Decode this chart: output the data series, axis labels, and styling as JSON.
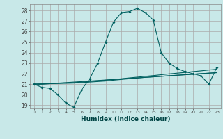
{
  "title": "",
  "xlabel": "Humidex (Indice chaleur)",
  "bg_color": "#c8e8e8",
  "grid_color": "#aaaaaa",
  "line_color": "#006060",
  "xlim": [
    -0.5,
    23.5
  ],
  "ylim": [
    18.7,
    28.6
  ],
  "yticks": [
    19,
    20,
    21,
    22,
    23,
    24,
    25,
    26,
    27,
    28
  ],
  "xticks": [
    0,
    1,
    2,
    3,
    4,
    5,
    6,
    7,
    8,
    9,
    10,
    11,
    12,
    13,
    14,
    15,
    16,
    17,
    18,
    19,
    20,
    21,
    22,
    23
  ],
  "series1_x": [
    0,
    1,
    2,
    3,
    4,
    5,
    6,
    7,
    8,
    9,
    10,
    11,
    12,
    13,
    14,
    15,
    16,
    17,
    18,
    19,
    20,
    21,
    22,
    23
  ],
  "series1_y": [
    21.0,
    20.7,
    20.6,
    20.0,
    19.2,
    18.8,
    20.5,
    21.5,
    23.0,
    25.0,
    26.9,
    27.8,
    27.9,
    28.2,
    27.8,
    27.1,
    24.0,
    23.0,
    22.5,
    22.2,
    22.0,
    21.8,
    21.0,
    22.6
  ],
  "series2_y": [
    21.0,
    21.0,
    21.05,
    21.1,
    21.15,
    21.2,
    21.25,
    21.3,
    21.35,
    21.4,
    21.45,
    21.5,
    21.55,
    21.6,
    21.65,
    21.7,
    21.75,
    21.8,
    21.85,
    21.9,
    21.95,
    22.0,
    22.05,
    22.1
  ],
  "series3_y": [
    21.0,
    21.02,
    21.04,
    21.06,
    21.08,
    21.1,
    21.15,
    21.2,
    21.25,
    21.3,
    21.38,
    21.45,
    21.52,
    21.58,
    21.65,
    21.7,
    21.75,
    21.8,
    21.85,
    21.9,
    21.95,
    22.0,
    22.05,
    22.1
  ],
  "series4_y": [
    21.0,
    21.03,
    21.06,
    21.09,
    21.12,
    21.15,
    21.2,
    21.26,
    21.32,
    21.38,
    21.45,
    21.52,
    21.6,
    21.67,
    21.75,
    21.82,
    21.9,
    21.98,
    22.05,
    22.12,
    22.2,
    22.27,
    22.35,
    22.42
  ]
}
